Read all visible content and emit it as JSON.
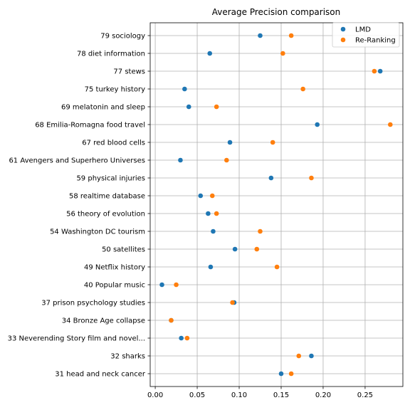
{
  "chart_data": {
    "type": "scatter",
    "title": "Average Precision comparison",
    "xlabel": "",
    "ylabel": "",
    "xlim": [
      -0.006,
      0.295
    ],
    "xticks": [
      0.0,
      0.05,
      0.1,
      0.15,
      0.2,
      0.25
    ],
    "xtick_labels": [
      "0.00",
      "0.05",
      "0.10",
      "0.15",
      "0.20",
      "0.25"
    ],
    "grid": true,
    "legend_position": "top-right",
    "categories": [
      "79 sociology",
      "78 diet information",
      "77 stews",
      "75 turkey history",
      "69 melatonin and sleep",
      "68 Emilia-Romagna food travel",
      "67 red blood cells",
      "61 Avengers and Superhero Universes",
      "59 physical injuries",
      "58 realtime database",
      "56 theory of evolution",
      "54 Washington DC tourism",
      "50 satellites",
      "49 Netflix history",
      "40 Popular music",
      "37 prison psychology studies",
      "34 Bronze Age collapse",
      "33 Neverending Story film and novel...",
      "32 sharks",
      "31 head and neck cancer"
    ],
    "series": [
      {
        "name": "LMD",
        "color": "#1f77b4",
        "values": [
          0.125,
          0.065,
          0.268,
          0.035,
          0.04,
          0.193,
          0.089,
          0.03,
          0.138,
          0.054,
          0.063,
          0.069,
          0.095,
          0.066,
          0.008,
          0.094,
          0.019,
          0.031,
          0.186,
          0.15
        ]
      },
      {
        "name": "Re-Ranking",
        "color": "#ff7f0e",
        "values": [
          0.162,
          0.152,
          0.261,
          0.176,
          0.073,
          0.28,
          0.14,
          0.085,
          0.186,
          0.068,
          0.073,
          0.125,
          0.121,
          0.145,
          0.025,
          0.092,
          0.019,
          0.038,
          0.171,
          0.162
        ]
      }
    ]
  }
}
